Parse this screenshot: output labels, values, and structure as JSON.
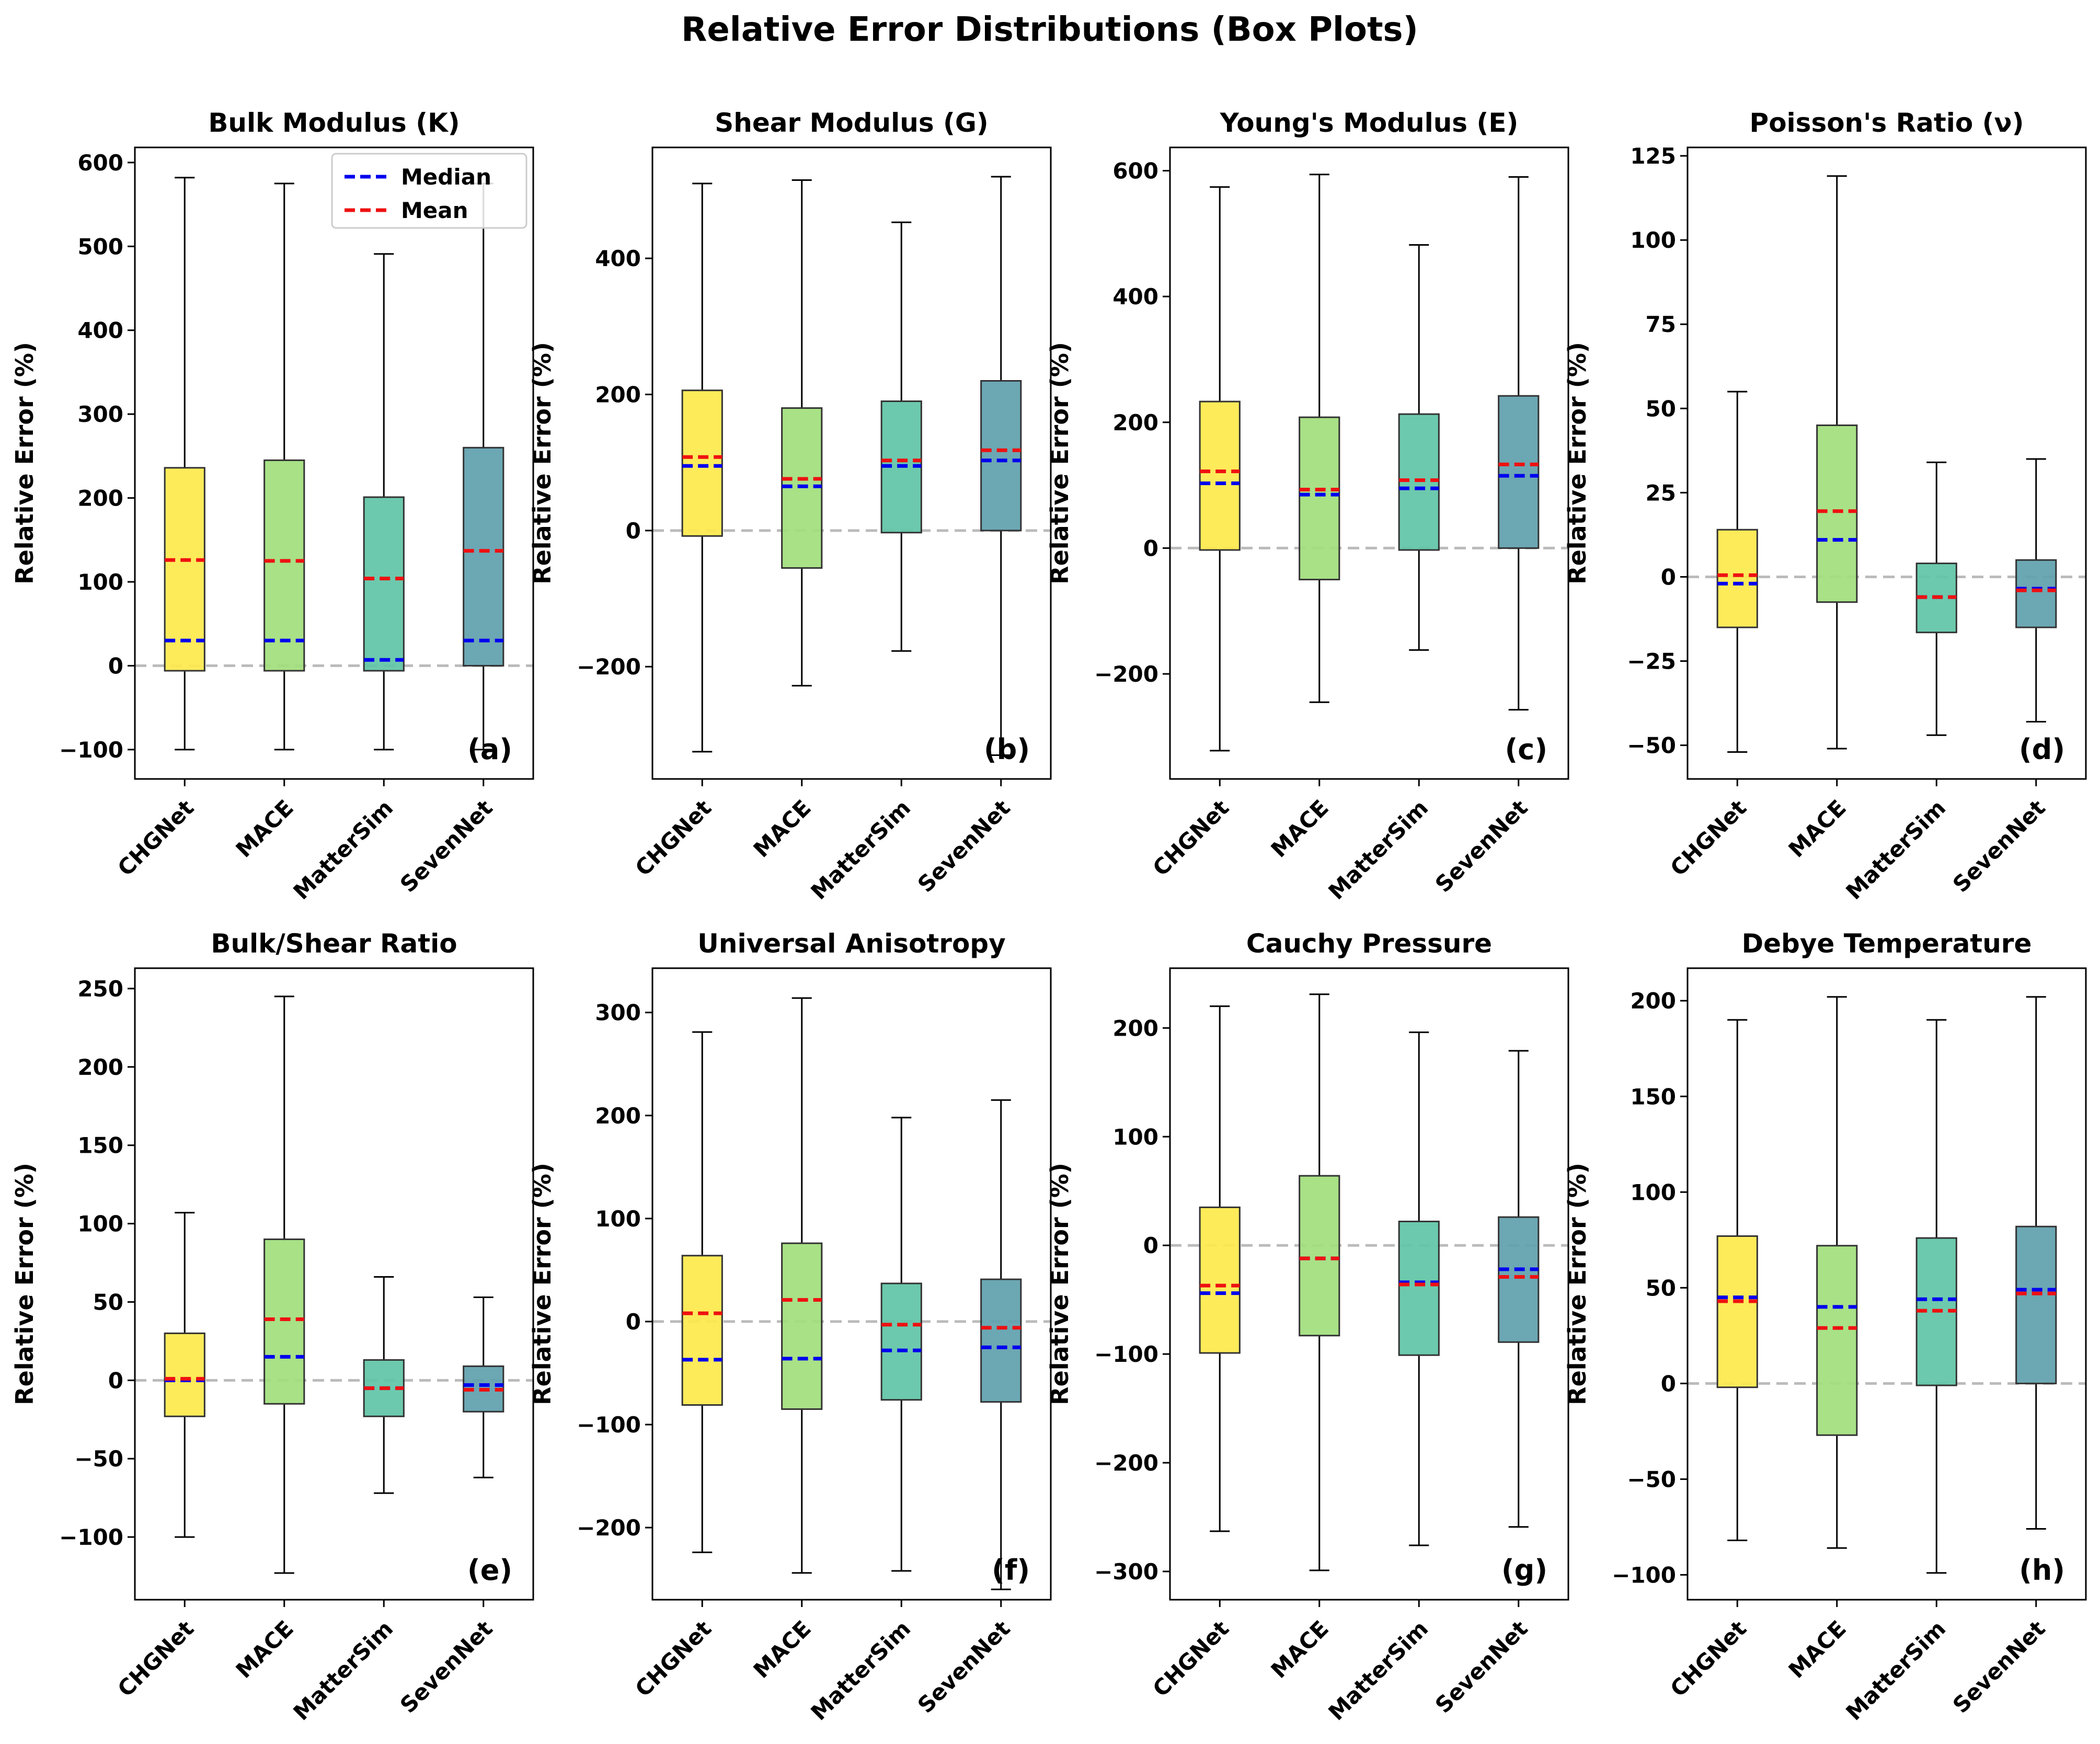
{
  "suptitle": "Relative Error Distributions (Box Plots)",
  "colors": {
    "CHGNet": "#fde94c",
    "MACE": "#a1de7c",
    "MatterSim": "#5fc4a6",
    "SevenNet": "#5f9fae",
    "median": "#0000ee",
    "mean": "#ee1111",
    "zero_line": "#bbbbbb"
  },
  "legend": {
    "median_label": "Median",
    "mean_label": "Mean",
    "placement": "top-right of panel (a)"
  },
  "chart_data": [
    {
      "type": "box",
      "title": "Bulk Modulus (K)",
      "tag": "(a)",
      "ylabel": "Relative Error (%)",
      "categories": [
        "CHGNet",
        "MACE",
        "MatterSim",
        "SevenNet"
      ],
      "ylim": [
        -135,
        618
      ],
      "yticks": [
        -100,
        0,
        100,
        200,
        300,
        400,
        500,
        600
      ],
      "ytick_labels": [
        "−100",
        "0",
        "100",
        "200",
        "300",
        "400",
        "500",
        "600"
      ],
      "boxes": [
        {
          "whislo": -100,
          "q1": -6,
          "med": 30,
          "mean": 126,
          "q3": 236,
          "whishi": 582
        },
        {
          "whislo": -100,
          "q1": -6,
          "med": 30,
          "mean": 125,
          "q3": 245,
          "whishi": 575
        },
        {
          "whislo": -100,
          "q1": -6,
          "med": 7,
          "mean": 104,
          "q3": 201,
          "whishi": 491
        },
        {
          "whislo": -100,
          "q1": 0,
          "med": 30,
          "mean": 137,
          "q3": 260,
          "whishi": 575
        }
      ]
    },
    {
      "type": "box",
      "title": "Shear Modulus (G)",
      "tag": "(b)",
      "ylabel": "Relative Error (%)",
      "categories": [
        "CHGNet",
        "MACE",
        "MatterSim",
        "SevenNet"
      ],
      "ylim": [
        -365,
        563
      ],
      "yticks": [
        -200,
        0,
        200,
        400
      ],
      "ytick_labels": [
        "−200",
        "0",
        "200",
        "400"
      ],
      "boxes": [
        {
          "whislo": -325,
          "q1": -8,
          "med": 95,
          "mean": 108,
          "q3": 206,
          "whishi": 510
        },
        {
          "whislo": -228,
          "q1": -55,
          "med": 65,
          "mean": 76,
          "q3": 180,
          "whishi": 515
        },
        {
          "whislo": -177,
          "q1": -3,
          "med": 95,
          "mean": 103,
          "q3": 190,
          "whishi": 453
        },
        {
          "whislo": -330,
          "q1": 0,
          "med": 103,
          "mean": 118,
          "q3": 220,
          "whishi": 520
        }
      ]
    },
    {
      "type": "box",
      "title": "Young's Modulus (E)",
      "tag": "(c)",
      "ylabel": "Relative Error (%)",
      "categories": [
        "CHGNet",
        "MACE",
        "MatterSim",
        "SevenNet"
      ],
      "ylim": [
        -367,
        637
      ],
      "yticks": [
        -200,
        0,
        200,
        400,
        600
      ],
      "ytick_labels": [
        "−200",
        "0",
        "200",
        "400",
        "600"
      ],
      "boxes": [
        {
          "whislo": -322,
          "q1": -3,
          "med": 103,
          "mean": 122,
          "q3": 233,
          "whishi": 574
        },
        {
          "whislo": -245,
          "q1": -50,
          "med": 85,
          "mean": 93,
          "q3": 208,
          "whishi": 594
        },
        {
          "whislo": -162,
          "q1": -3,
          "med": 95,
          "mean": 108,
          "q3": 213,
          "whishi": 482
        },
        {
          "whislo": -257,
          "q1": 0,
          "med": 115,
          "mean": 133,
          "q3": 242,
          "whishi": 590
        }
      ]
    },
    {
      "type": "box",
      "title": "Poisson's Ratio (ν)",
      "tag": "(d)",
      "ylabel": "Relative Error (%)",
      "categories": [
        "CHGNet",
        "MACE",
        "MatterSim",
        "SevenNet"
      ],
      "ylim": [
        -60,
        127.5
      ],
      "yticks": [
        -50,
        -25,
        0,
        25,
        50,
        75,
        100,
        125
      ],
      "ytick_labels": [
        "−50",
        "−25",
        "0",
        "25",
        "50",
        "75",
        "100",
        "125"
      ],
      "boxes": [
        {
          "whislo": -52,
          "q1": -15,
          "med": -2,
          "mean": 0.5,
          "q3": 14,
          "whishi": 55
        },
        {
          "whislo": -51,
          "q1": -7.5,
          "med": 11,
          "mean": 19.5,
          "q3": 45,
          "whishi": 119
        },
        {
          "whislo": -47,
          "q1": -16.5,
          "med": -6,
          "mean": -6,
          "q3": 4,
          "whishi": 34
        },
        {
          "whislo": -43,
          "q1": -15,
          "med": -3.5,
          "mean": -4,
          "q3": 5,
          "whishi": 35
        }
      ]
    },
    {
      "type": "box",
      "title": "Bulk/Shear Ratio",
      "tag": "(e)",
      "ylabel": "Relative Error (%)",
      "categories": [
        "CHGNet",
        "MACE",
        "MatterSim",
        "SevenNet"
      ],
      "ylim": [
        -140,
        263
      ],
      "yticks": [
        -100,
        -50,
        0,
        50,
        100,
        150,
        200,
        250
      ],
      "ytick_labels": [
        "−100",
        "−50",
        "0",
        "50",
        "100",
        "150",
        "200",
        "250"
      ],
      "boxes": [
        {
          "whislo": -100,
          "q1": -23,
          "med": 0,
          "mean": 1,
          "q3": 30,
          "whishi": 107
        },
        {
          "whislo": -123,
          "q1": -15,
          "med": 15,
          "mean": 39,
          "q3": 90,
          "whishi": 245
        },
        {
          "whislo": -72,
          "q1": -23,
          "med": -5,
          "mean": -5,
          "q3": 13,
          "whishi": 66
        },
        {
          "whislo": -62,
          "q1": -20,
          "med": -3,
          "mean": -6,
          "q3": 9,
          "whishi": 53
        }
      ]
    },
    {
      "type": "box",
      "title": "Universal Anisotropy",
      "tag": "(f)",
      "ylabel": "Relative Error (%)",
      "categories": [
        "CHGNet",
        "MACE",
        "MatterSim",
        "SevenNet"
      ],
      "ylim": [
        -270,
        343
      ],
      "yticks": [
        -200,
        -100,
        0,
        100,
        200,
        300
      ],
      "ytick_labels": [
        "−200",
        "−100",
        "0",
        "100",
        "200",
        "300"
      ],
      "boxes": [
        {
          "whislo": -224,
          "q1": -81,
          "med": -37,
          "mean": 8,
          "q3": 64,
          "whishi": 281
        },
        {
          "whislo": -244,
          "q1": -85,
          "med": -36,
          "mean": 21,
          "q3": 76,
          "whishi": 314
        },
        {
          "whislo": -242,
          "q1": -76,
          "med": -28,
          "mean": -3,
          "q3": 37,
          "whishi": 198
        },
        {
          "whislo": -260,
          "q1": -78,
          "med": -25,
          "mean": -6,
          "q3": 41,
          "whishi": 215
        }
      ]
    },
    {
      "type": "box",
      "title": "Cauchy Pressure",
      "tag": "(g)",
      "ylabel": "Relative Error (%)",
      "categories": [
        "CHGNet",
        "MACE",
        "MatterSim",
        "SevenNet"
      ],
      "ylim": [
        -326,
        255
      ],
      "yticks": [
        -300,
        -200,
        -100,
        0,
        100,
        200
      ],
      "ytick_labels": [
        "−300",
        "−200",
        "−100",
        "0",
        "100",
        "200"
      ],
      "boxes": [
        {
          "whislo": -263,
          "q1": -99,
          "med": -44,
          "mean": -37,
          "q3": 35,
          "whishi": 220
        },
        {
          "whislo": -299,
          "q1": -83,
          "med": -12,
          "mean": -12,
          "q3": 64,
          "whishi": 231
        },
        {
          "whislo": -276,
          "q1": -101,
          "med": -34,
          "mean": -36,
          "q3": 22,
          "whishi": 196
        },
        {
          "whislo": -259,
          "q1": -89,
          "med": -22,
          "mean": -29,
          "q3": 26,
          "whishi": 179
        }
      ]
    },
    {
      "type": "box",
      "title": "Debye Temperature",
      "tag": "(h)",
      "ylabel": "Relative Error (%)",
      "categories": [
        "CHGNet",
        "MACE",
        "MatterSim",
        "SevenNet"
      ],
      "ylim": [
        -113,
        217
      ],
      "yticks": [
        -100,
        -50,
        0,
        50,
        100,
        150,
        200
      ],
      "ytick_labels": [
        "−100",
        "−50",
        "0",
        "50",
        "100",
        "150",
        "200"
      ],
      "boxes": [
        {
          "whislo": -82,
          "q1": -2,
          "med": 45,
          "mean": 43,
          "q3": 77,
          "whishi": 190
        },
        {
          "whislo": -86,
          "q1": -27,
          "med": 40,
          "mean": 29,
          "q3": 72,
          "whishi": 202
        },
        {
          "whislo": -99,
          "q1": -1,
          "med": 44,
          "mean": 38,
          "q3": 76,
          "whishi": 190
        },
        {
          "whislo": -76,
          "q1": 0,
          "med": 49,
          "mean": 47,
          "q3": 82,
          "whishi": 202
        }
      ]
    }
  ]
}
